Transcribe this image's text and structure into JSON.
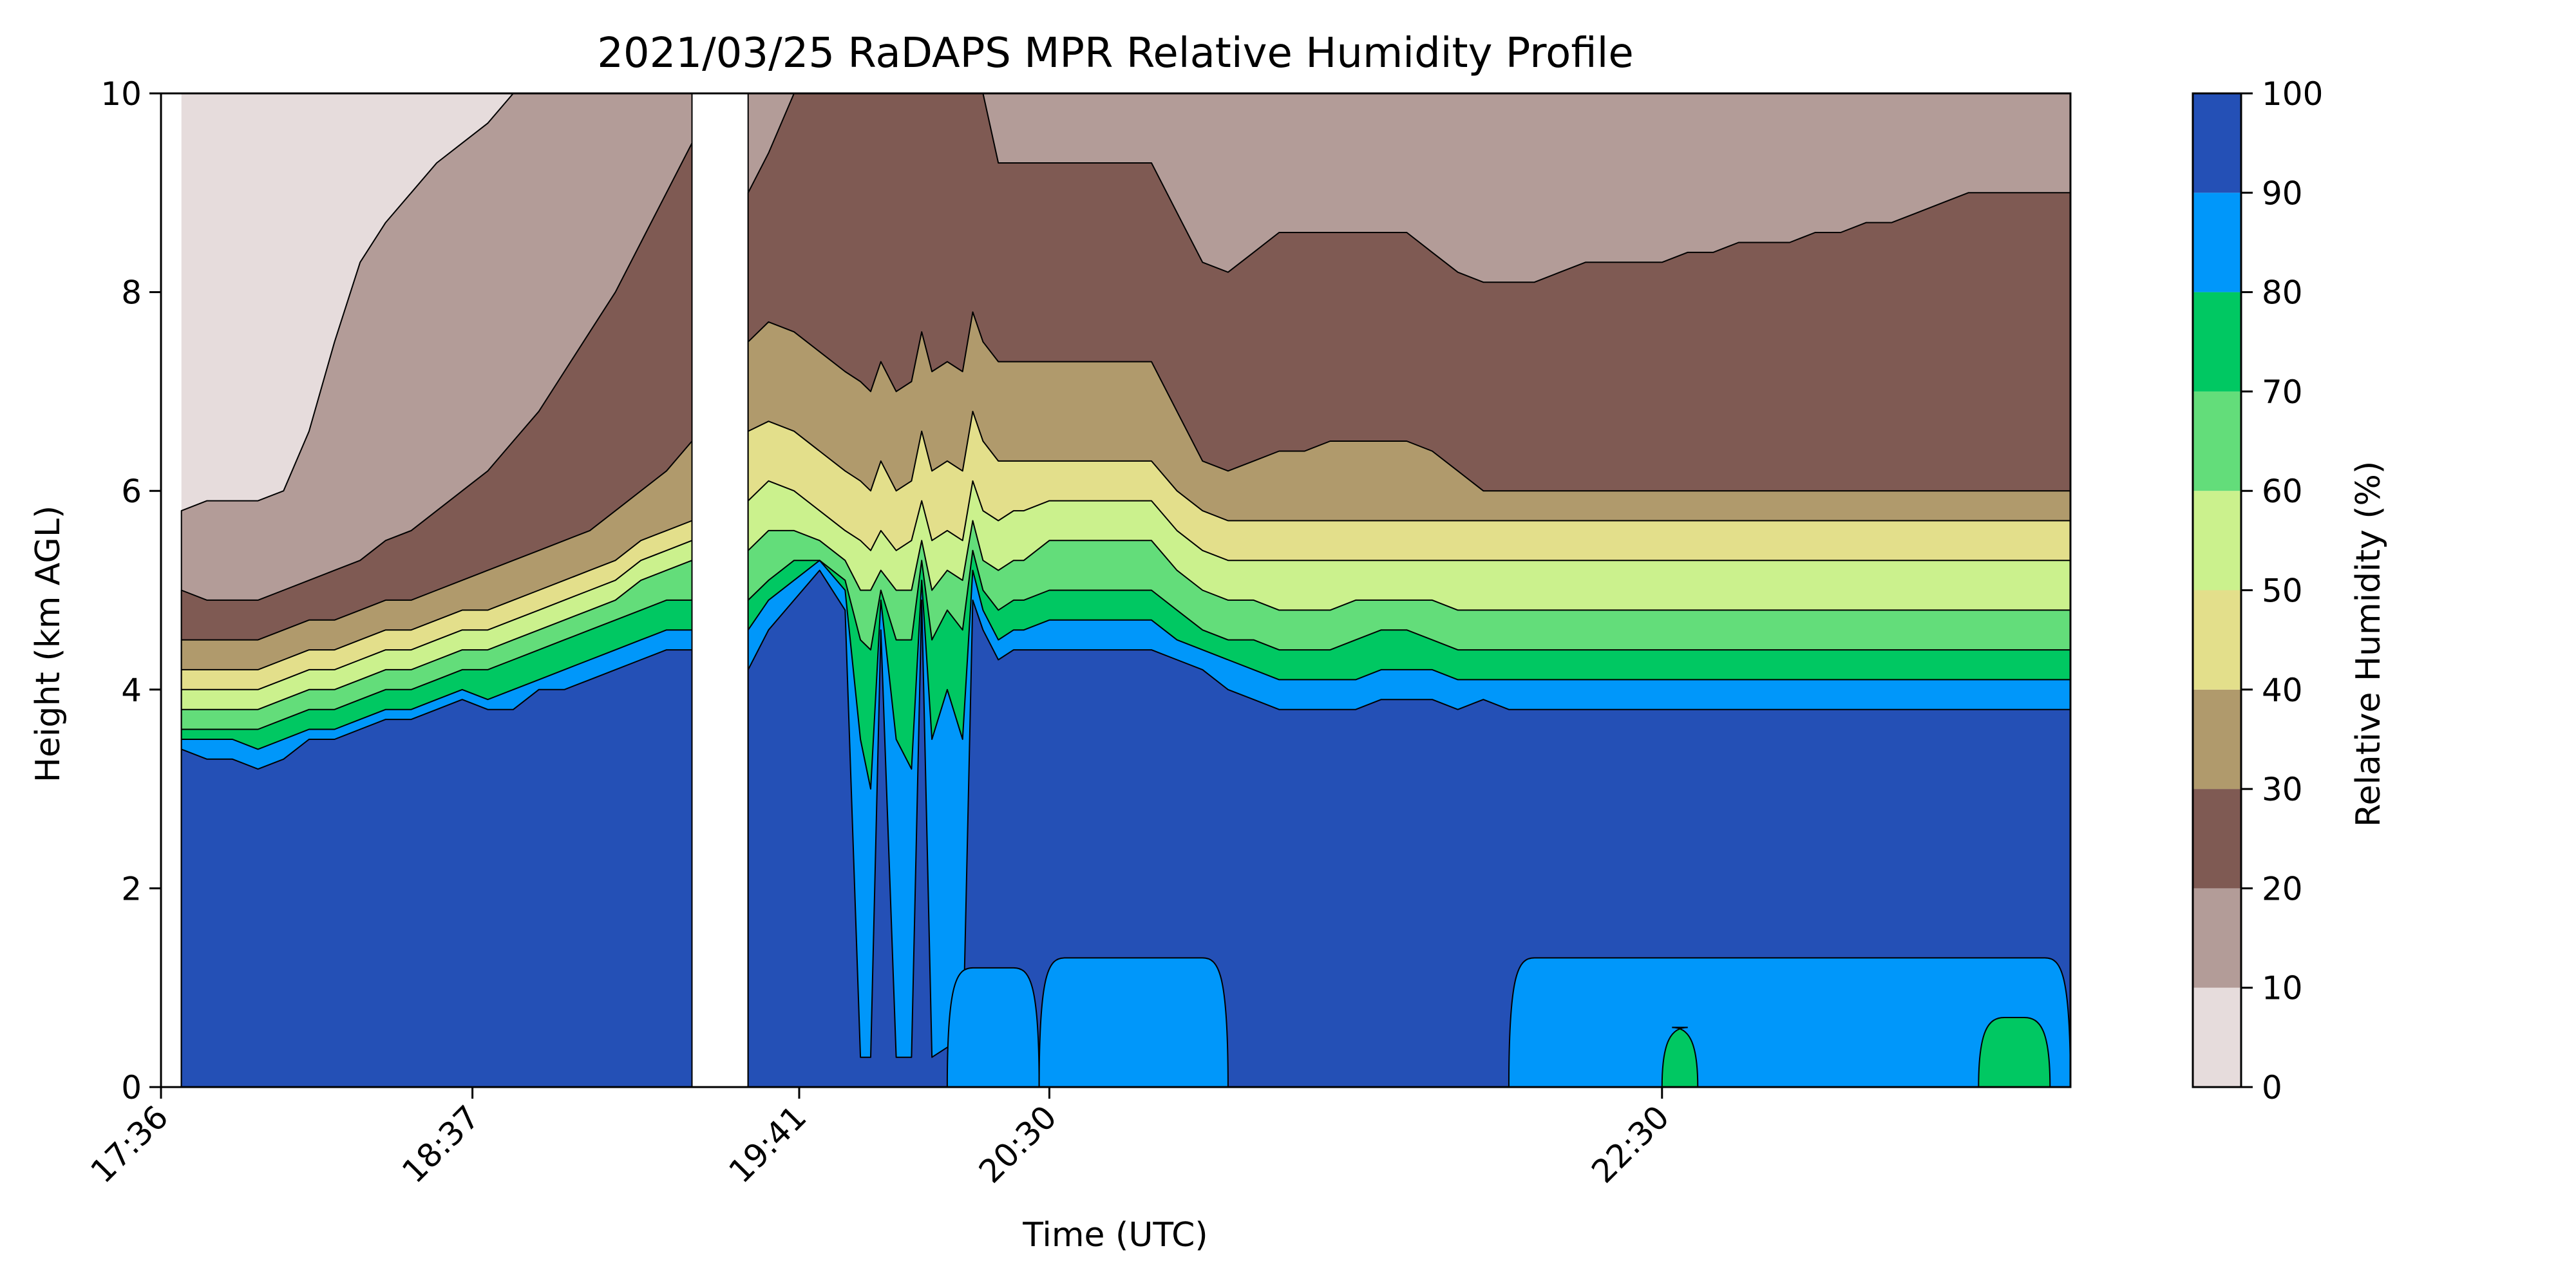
{
  "chart_data": {
    "type": "heatmap",
    "subtype": "filled-contour",
    "title": "2021/03/25 RaDAPS MPR Relative Humidity Profile",
    "xlabel": "Time (UTC)",
    "ylabel": "Height (km AGL)",
    "xticks": [
      "17:36",
      "18:37",
      "19:41",
      "20:30",
      "22:30"
    ],
    "xtick_minutes": [
      1056,
      1117,
      1181,
      1230,
      1350
    ],
    "xlim_minutes": [
      1056,
      1430
    ],
    "yticks": [
      0,
      2,
      4,
      6,
      8,
      10
    ],
    "ylim": [
      0,
      10
    ],
    "data_gap_minutes": [
      [
        1056,
        1060
      ],
      [
        1160,
        1171
      ]
    ],
    "colorbar": {
      "label": "Relative Humidity (%)",
      "ticks": [
        0,
        10,
        20,
        30,
        40,
        50,
        60,
        70,
        80,
        90,
        100
      ],
      "levels": [
        0,
        10,
        20,
        30,
        40,
        50,
        60,
        70,
        80,
        90,
        100
      ],
      "colors": [
        "#e6dcdc",
        "#b39c98",
        "#7f5a53",
        "#b09a6c",
        "#e3df8b",
        "#cbf18d",
        "#63dd7a",
        "#00c862",
        "#0097fa",
        "#2450b6"
      ]
    },
    "x": [
      1060,
      1065,
      1070,
      1075,
      1080,
      1085,
      1090,
      1095,
      1100,
      1105,
      1110,
      1115,
      1120,
      1125,
      1130,
      1135,
      1140,
      1145,
      1150,
      1155,
      1160,
      null,
      1171,
      1175,
      1180,
      1185,
      1190,
      1193,
      1195,
      1197,
      1200,
      1203,
      1205,
      1207,
      1210,
      1213,
      1215,
      1217,
      1220,
      1223,
      1225,
      1230,
      1235,
      1240,
      1245,
      1250,
      1255,
      1260,
      1265,
      1270,
      1275,
      1280,
      1285,
      1290,
      1295,
      1300,
      1305,
      1310,
      1315,
      1320,
      1325,
      1330,
      1335,
      1340,
      1345,
      1350,
      1355,
      1360,
      1365,
      1370,
      1375,
      1380,
      1385,
      1390,
      1395,
      1400,
      1405,
      1410,
      1415,
      1420,
      1425,
      1430
    ],
    "contour_heights_km": {
      "90": [
        3.4,
        3.3,
        3.3,
        3.2,
        3.3,
        3.5,
        3.5,
        3.6,
        3.7,
        3.7,
        3.8,
        3.9,
        3.8,
        3.8,
        4.0,
        4.0,
        4.1,
        4.2,
        4.3,
        4.4,
        4.4,
        null,
        4.2,
        4.6,
        4.9,
        5.2,
        4.8,
        0.3,
        0.3,
        4.6,
        0.3,
        0.3,
        4.9,
        0.3,
        0.4,
        0.3,
        4.9,
        4.6,
        4.3,
        4.4,
        4.4,
        4.4,
        4.4,
        4.4,
        4.4,
        4.4,
        4.3,
        4.2,
        4.0,
        3.9,
        3.8,
        3.8,
        3.8,
        3.8,
        3.9,
        3.9,
        3.9,
        3.8,
        3.9,
        3.8,
        3.8,
        3.8,
        3.8,
        3.8,
        3.8,
        3.8,
        3.8,
        3.8,
        3.8,
        3.8,
        3.8,
        3.8,
        3.8,
        3.8,
        3.8,
        3.8,
        3.8,
        3.8,
        3.8,
        3.8,
        3.8,
        3.8
      ],
      "80": [
        3.5,
        3.5,
        3.5,
        3.4,
        3.5,
        3.6,
        3.6,
        3.7,
        3.8,
        3.8,
        3.9,
        4.0,
        3.9,
        4.0,
        4.1,
        4.2,
        4.3,
        4.4,
        4.5,
        4.6,
        4.6,
        null,
        4.6,
        4.9,
        5.1,
        5.3,
        5.0,
        3.5,
        3.0,
        4.9,
        3.5,
        3.2,
        5.1,
        3.5,
        4.0,
        3.5,
        5.2,
        4.8,
        4.5,
        4.6,
        4.6,
        4.7,
        4.7,
        4.7,
        4.7,
        4.7,
        4.5,
        4.4,
        4.3,
        4.2,
        4.1,
        4.1,
        4.1,
        4.1,
        4.2,
        4.2,
        4.2,
        4.1,
        4.1,
        4.1,
        4.1,
        4.1,
        4.1,
        4.1,
        4.1,
        4.1,
        4.1,
        4.1,
        4.1,
        4.1,
        4.1,
        4.1,
        4.1,
        4.1,
        4.1,
        4.1,
        4.1,
        4.1,
        4.1,
        4.1,
        4.1,
        4.1
      ],
      "70": [
        3.6,
        3.6,
        3.6,
        3.6,
        3.7,
        3.8,
        3.8,
        3.9,
        4.0,
        4.0,
        4.1,
        4.2,
        4.2,
        4.3,
        4.4,
        4.5,
        4.6,
        4.7,
        4.8,
        4.9,
        4.9,
        null,
        4.9,
        5.1,
        5.3,
        5.3,
        5.1,
        4.5,
        4.4,
        5.0,
        4.5,
        4.5,
        5.3,
        4.5,
        4.8,
        4.6,
        5.4,
        5.0,
        4.8,
        4.9,
        4.9,
        5.0,
        5.0,
        5.0,
        5.0,
        5.0,
        4.8,
        4.6,
        4.5,
        4.5,
        4.4,
        4.4,
        4.4,
        4.5,
        4.6,
        4.6,
        4.5,
        4.4,
        4.4,
        4.4,
        4.4,
        4.4,
        4.4,
        4.4,
        4.4,
        4.4,
        4.4,
        4.4,
        4.4,
        4.4,
        4.4,
        4.4,
        4.4,
        4.4,
        4.4,
        4.4,
        4.4,
        4.4,
        4.4,
        4.4,
        4.4,
        4.4
      ],
      "60": [
        3.8,
        3.8,
        3.8,
        3.8,
        3.9,
        4.0,
        4.0,
        4.1,
        4.2,
        4.2,
        4.3,
        4.4,
        4.4,
        4.5,
        4.6,
        4.7,
        4.8,
        4.9,
        5.1,
        5.2,
        5.3,
        null,
        5.4,
        5.6,
        5.6,
        5.5,
        5.3,
        5.0,
        5.0,
        5.2,
        5.0,
        5.0,
        5.5,
        5.0,
        5.2,
        5.1,
        5.7,
        5.3,
        5.2,
        5.3,
        5.3,
        5.5,
        5.5,
        5.5,
        5.5,
        5.5,
        5.2,
        5.0,
        4.9,
        4.9,
        4.8,
        4.8,
        4.8,
        4.9,
        4.9,
        4.9,
        4.9,
        4.8,
        4.8,
        4.8,
        4.8,
        4.8,
        4.8,
        4.8,
        4.8,
        4.8,
        4.8,
        4.8,
        4.8,
        4.8,
        4.8,
        4.8,
        4.8,
        4.8,
        4.8,
        4.8,
        4.8,
        4.8,
        4.8,
        4.8,
        4.8,
        4.8
      ],
      "50": [
        4.0,
        4.0,
        4.0,
        4.0,
        4.1,
        4.2,
        4.2,
        4.3,
        4.4,
        4.4,
        4.5,
        4.6,
        4.6,
        4.7,
        4.8,
        4.9,
        5.0,
        5.1,
        5.3,
        5.4,
        5.5,
        null,
        5.9,
        6.1,
        6.0,
        5.8,
        5.6,
        5.5,
        5.4,
        5.6,
        5.4,
        5.5,
        5.9,
        5.5,
        5.6,
        5.5,
        6.1,
        5.8,
        5.7,
        5.8,
        5.8,
        5.9,
        5.9,
        5.9,
        5.9,
        5.9,
        5.6,
        5.4,
        5.3,
        5.3,
        5.3,
        5.3,
        5.3,
        5.3,
        5.3,
        5.3,
        5.3,
        5.3,
        5.3,
        5.3,
        5.3,
        5.3,
        5.3,
        5.3,
        5.3,
        5.3,
        5.3,
        5.3,
        5.3,
        5.3,
        5.3,
        5.3,
        5.3,
        5.3,
        5.3,
        5.3,
        5.3,
        5.3,
        5.3,
        5.3,
        5.3,
        5.3
      ],
      "40": [
        4.2,
        4.2,
        4.2,
        4.2,
        4.3,
        4.4,
        4.4,
        4.5,
        4.6,
        4.6,
        4.7,
        4.8,
        4.8,
        4.9,
        5.0,
        5.1,
        5.2,
        5.3,
        5.5,
        5.6,
        5.7,
        null,
        6.6,
        6.7,
        6.6,
        6.4,
        6.2,
        6.1,
        6.0,
        6.3,
        6.0,
        6.1,
        6.6,
        6.2,
        6.3,
        6.2,
        6.8,
        6.5,
        6.3,
        6.3,
        6.3,
        6.3,
        6.3,
        6.3,
        6.3,
        6.3,
        6.0,
        5.8,
        5.7,
        5.7,
        5.7,
        5.7,
        5.7,
        5.7,
        5.7,
        5.7,
        5.7,
        5.7,
        5.7,
        5.7,
        5.7,
        5.7,
        5.7,
        5.7,
        5.7,
        5.7,
        5.7,
        5.7,
        5.7,
        5.7,
        5.7,
        5.7,
        5.7,
        5.7,
        5.7,
        5.7,
        5.7,
        5.7,
        5.7,
        5.7,
        5.7,
        5.7
      ],
      "30": [
        4.5,
        4.5,
        4.5,
        4.5,
        4.6,
        4.7,
        4.7,
        4.8,
        4.9,
        4.9,
        5.0,
        5.1,
        5.2,
        5.3,
        5.4,
        5.5,
        5.6,
        5.8,
        6.0,
        6.2,
        6.5,
        null,
        7.5,
        7.7,
        7.6,
        7.4,
        7.2,
        7.1,
        7.0,
        7.3,
        7.0,
        7.1,
        7.6,
        7.2,
        7.3,
        7.2,
        7.8,
        7.5,
        7.3,
        7.3,
        7.3,
        7.3,
        7.3,
        7.3,
        7.3,
        7.3,
        6.8,
        6.3,
        6.2,
        6.3,
        6.4,
        6.4,
        6.5,
        6.5,
        6.5,
        6.5,
        6.4,
        6.2,
        6.0,
        6.0,
        6.0,
        6.0,
        6.0,
        6.0,
        6.0,
        6.0,
        6.0,
        6.0,
        6.0,
        6.0,
        6.0,
        6.0,
        6.0,
        6.0,
        6.0,
        6.0,
        6.0,
        6.0,
        6.0,
        6.0,
        6.0,
        6.0
      ],
      "20": [
        5.0,
        4.9,
        4.9,
        4.9,
        5.0,
        5.1,
        5.2,
        5.3,
        5.5,
        5.6,
        5.8,
        6.0,
        6.2,
        6.5,
        6.8,
        7.2,
        7.6,
        8.0,
        8.5,
        9.0,
        9.5,
        null,
        9.0,
        9.4,
        10.0,
        10.0,
        10.0,
        10.0,
        10.0,
        10.0,
        10.0,
        10.0,
        10.0,
        10.0,
        10.0,
        10.0,
        10.0,
        10.0,
        9.3,
        9.3,
        9.3,
        9.3,
        9.3,
        9.3,
        9.3,
        9.3,
        8.8,
        8.3,
        8.2,
        8.4,
        8.6,
        8.6,
        8.6,
        8.6,
        8.6,
        8.6,
        8.4,
        8.2,
        8.1,
        8.1,
        8.1,
        8.2,
        8.3,
        8.3,
        8.3,
        8.3,
        8.4,
        8.4,
        8.5,
        8.5,
        8.5,
        8.6,
        8.6,
        8.7,
        8.7,
        8.8,
        8.9,
        9.0,
        9.0,
        9.0,
        9.0,
        9.0
      ],
      "10": [
        5.8,
        5.9,
        5.9,
        5.9,
        6.0,
        6.6,
        7.5,
        8.3,
        8.7,
        9.0,
        9.3,
        9.5,
        9.7,
        10.0,
        10.0,
        10.0,
        10.0,
        10.0,
        10.0,
        10.0,
        10.0,
        null,
        10.0,
        10.0,
        10.0,
        10.0,
        10.0,
        10.0,
        10.0,
        10.0,
        10.0,
        10.0,
        10.0,
        10.0,
        10.0,
        10.0,
        10.0,
        10.0,
        10.0,
        10.0,
        10.0,
        10.0,
        10.0,
        10.0,
        10.0,
        10.0,
        10.0,
        10.0,
        10.0,
        10.0,
        10.0,
        10.0,
        10.0,
        10.0,
        10.0,
        10.0,
        10.0,
        10.0,
        10.0,
        10.0,
        10.0,
        10.0,
        10.0,
        10.0,
        10.0,
        10.0,
        10.0,
        10.0,
        10.0,
        10.0,
        10.0,
        10.0,
        10.0,
        10.0,
        10.0,
        10.0,
        10.0,
        10.0,
        10.0,
        10.0,
        10.0,
        10.0
      ]
    },
    "near_surface_features": [
      {
        "x0": 1210,
        "x1": 1228,
        "ytop": 1.2,
        "level": 80
      },
      {
        "x0": 1228,
        "x1": 1265,
        "ytop": 1.3,
        "level": 80
      },
      {
        "x0": 1320,
        "x1": 1430,
        "ytop": 1.3,
        "level": 80
      },
      {
        "x0": 1350,
        "x1": 1357,
        "ytop": 0.6,
        "level": 70
      },
      {
        "x0": 1412,
        "x1": 1426,
        "ytop": 0.7,
        "level": 70
      }
    ]
  }
}
